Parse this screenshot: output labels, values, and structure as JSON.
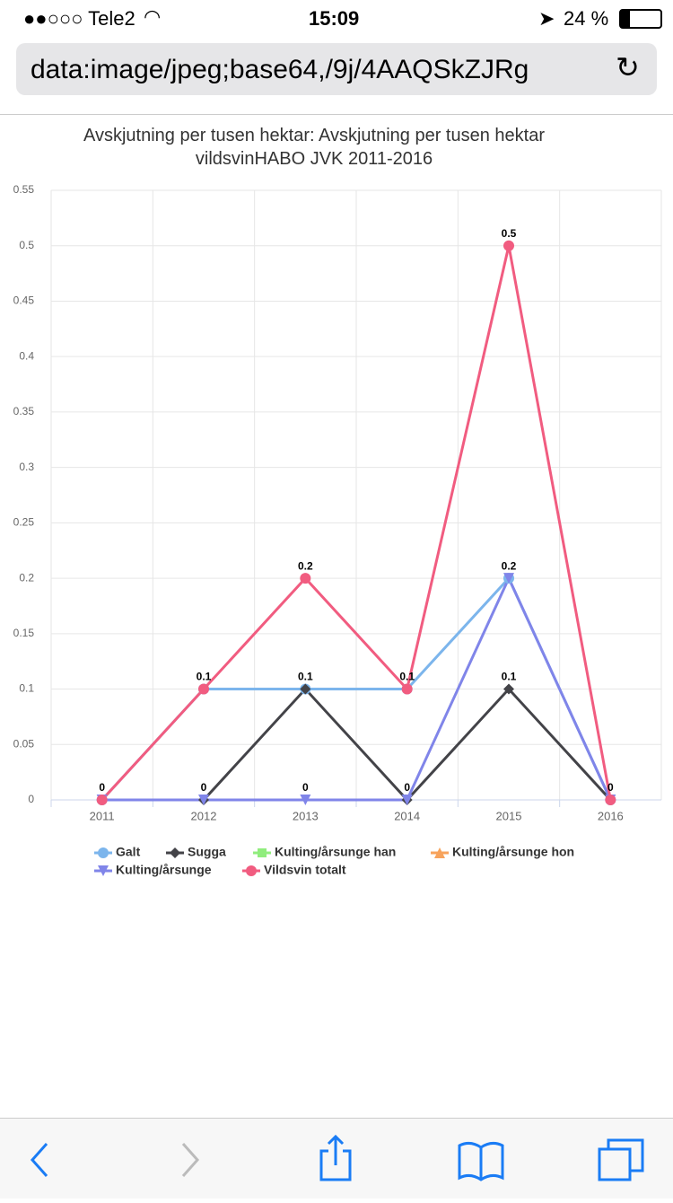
{
  "status_bar": {
    "carrier": "●●○○○ Tele2",
    "time": "15:09",
    "battery": "24 %"
  },
  "url_bar": {
    "url": "data:image/jpeg;base64,/9j/4AAQSkZJRg"
  },
  "chart_data": {
    "type": "line",
    "title": "Avskjutning per tusen hektar: Avskjutning per tusen hektar vildsvinHABO JVK 2011-2016",
    "categories": [
      "2011",
      "2012",
      "2013",
      "2014",
      "2015",
      "2016"
    ],
    "series": [
      {
        "name": "Galt",
        "color": "#7cb5ec",
        "marker": "circle",
        "values": [
          0,
          0.1,
          0.1,
          0.1,
          0.2,
          0
        ]
      },
      {
        "name": "Sugga",
        "color": "#434348",
        "marker": "diamond",
        "values": [
          0,
          0,
          0.1,
          0,
          0.1,
          0
        ]
      },
      {
        "name": "Kulting/årsunge han",
        "color": "#90ed7d",
        "marker": "square",
        "values": [
          null,
          null,
          null,
          null,
          null,
          null
        ]
      },
      {
        "name": "Kulting/årsunge hon",
        "color": "#f7a35c",
        "marker": "triangle",
        "values": [
          null,
          null,
          null,
          null,
          null,
          null
        ]
      },
      {
        "name": "Kulting/årsunge",
        "color": "#8085e9",
        "marker": "triangle-down",
        "values": [
          0,
          0,
          0,
          0,
          0.2,
          0
        ]
      },
      {
        "name": "Vildsvin totalt",
        "color": "#f15c80",
        "marker": "circle",
        "values": [
          0,
          0.1,
          0.2,
          0.1,
          0.5,
          0
        ]
      }
    ],
    "ylim": [
      0,
      0.55
    ],
    "yticks": [
      0,
      0.05,
      0.1,
      0.15,
      0.2,
      0.25,
      0.3,
      0.35,
      0.4,
      0.45,
      0.5,
      0.55
    ],
    "grid": true,
    "data_labels": true
  }
}
